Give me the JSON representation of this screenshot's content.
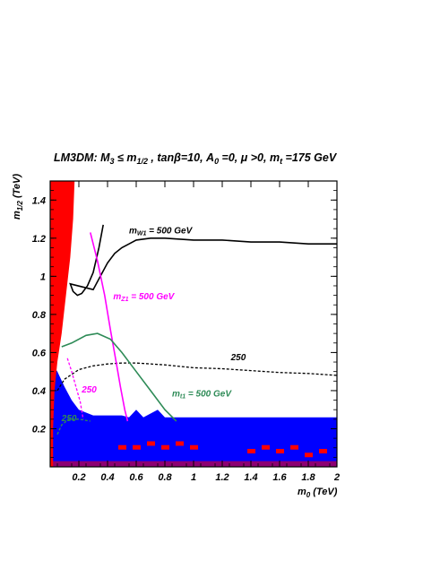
{
  "chart_data": {
    "type": "line",
    "title_main": "LM3DM:  M",
    "title_sub1": "3",
    "title_rel": " ≤ m",
    "title_sub2": "1/2",
    "title_rest": " , tanβ=10, A",
    "title_sub3": "0",
    "title_rest2": " =0, μ >0, m",
    "title_sub4": "t",
    "title_rest3": " =175 GeV",
    "xlabel_main": "m",
    "xlabel_sub": "0",
    "xlabel_unit": " (TeV)",
    "ylabel_main": "m",
    "ylabel_sub": "1/2",
    "ylabel_unit": " (TeV)",
    "xlim": [
      0,
      2
    ],
    "ylim": [
      0,
      1.5
    ],
    "x_ticks": [
      {
        "v": 0.2,
        "label": "0.2"
      },
      {
        "v": 0.4,
        "label": "0.4"
      },
      {
        "v": 0.6,
        "label": "0.6"
      },
      {
        "v": 0.8,
        "label": "0.8"
      },
      {
        "v": 1.0,
        "label": "1"
      },
      {
        "v": 1.2,
        "label": "1.2"
      },
      {
        "v": 1.4,
        "label": "1.4"
      },
      {
        "v": 1.6,
        "label": "1.6"
      },
      {
        "v": 1.8,
        "label": "1.8"
      },
      {
        "v": 2.0,
        "label": "2"
      }
    ],
    "y_ticks": [
      {
        "v": 0.2,
        "label": "0.2"
      },
      {
        "v": 0.4,
        "label": "0.4"
      },
      {
        "v": 0.6,
        "label": "0.6"
      },
      {
        "v": 0.8,
        "label": "0.8"
      },
      {
        "v": 1.0,
        "label": "1"
      },
      {
        "v": 1.2,
        "label": "1.2"
      },
      {
        "v": 1.4,
        "label": "1.4"
      }
    ],
    "colors": {
      "excluded_red": "#ff0000",
      "blue_region": "#0000ff",
      "mw1_curve": "#000000",
      "mz1_curve": "#ff00ff",
      "mt1_curve": "#2e8b57"
    },
    "series": [
      {
        "label_main": "m",
        "label_sub": "W1",
        "label_rest": " = 500 GeV",
        "color": "#000000",
        "style": "solid",
        "points": [
          [
            0.37,
            1.27
          ],
          [
            0.34,
            1.15
          ],
          [
            0.3,
            1.02
          ],
          [
            0.26,
            0.95
          ],
          [
            0.22,
            0.91
          ],
          [
            0.19,
            0.9
          ],
          [
            0.16,
            0.92
          ],
          [
            0.14,
            0.96
          ],
          [
            0.3,
            0.93
          ],
          [
            0.35,
            1.0
          ],
          [
            0.4,
            1.07
          ],
          [
            0.45,
            1.12
          ],
          [
            0.5,
            1.15
          ],
          [
            0.55,
            1.17
          ],
          [
            0.6,
            1.19
          ],
          [
            0.7,
            1.2
          ],
          [
            0.8,
            1.2
          ],
          [
            1.0,
            1.19
          ],
          [
            1.2,
            1.19
          ],
          [
            1.4,
            1.18
          ],
          [
            1.6,
            1.18
          ],
          [
            1.8,
            1.17
          ],
          [
            2.0,
            1.17
          ]
        ]
      },
      {
        "label_main": "m",
        "label_sub": "W1",
        "label_rest": " = 250",
        "color": "#000000",
        "style": "dashed",
        "points": [
          [
            0.05,
            0.4
          ],
          [
            0.1,
            0.46
          ],
          [
            0.2,
            0.51
          ],
          [
            0.3,
            0.53
          ],
          [
            0.4,
            0.54
          ],
          [
            0.5,
            0.545
          ],
          [
            0.6,
            0.545
          ],
          [
            0.8,
            0.535
          ],
          [
            1.0,
            0.52
          ],
          [
            1.2,
            0.515
          ],
          [
            1.4,
            0.505
          ],
          [
            1.6,
            0.495
          ],
          [
            1.8,
            0.49
          ],
          [
            2.0,
            0.48
          ]
        ]
      },
      {
        "label_main": "m",
        "label_sub": "Z1",
        "label_rest": " = 500 GeV",
        "color": "#ff00ff",
        "style": "solid",
        "points": [
          [
            0.28,
            1.23
          ],
          [
            0.33,
            1.08
          ],
          [
            0.38,
            0.9
          ],
          [
            0.42,
            0.72
          ],
          [
            0.46,
            0.55
          ],
          [
            0.49,
            0.42
          ],
          [
            0.52,
            0.3
          ],
          [
            0.54,
            0.24
          ]
        ]
      },
      {
        "label_main": "m",
        "label_sub": "Z1",
        "label_rest": " = 250",
        "color": "#ff00ff",
        "style": "dashed",
        "points": [
          [
            0.12,
            0.57
          ],
          [
            0.15,
            0.5
          ],
          [
            0.18,
            0.42
          ],
          [
            0.21,
            0.34
          ],
          [
            0.23,
            0.25
          ]
        ]
      },
      {
        "label_main": "m",
        "label_sub": "t1",
        "label_rest": " = 500 GeV",
        "color": "#2e8b57",
        "style": "solid",
        "points": [
          [
            0.08,
            0.63
          ],
          [
            0.15,
            0.65
          ],
          [
            0.25,
            0.69
          ],
          [
            0.33,
            0.7
          ],
          [
            0.42,
            0.67
          ],
          [
            0.5,
            0.6
          ],
          [
            0.6,
            0.5
          ],
          [
            0.7,
            0.4
          ],
          [
            0.8,
            0.3
          ],
          [
            0.88,
            0.24
          ]
        ]
      },
      {
        "label_main": "m",
        "label_sub": "t1",
        "label_rest": " = 250",
        "color": "#2e8b57",
        "style": "dashed",
        "points": [
          [
            0.05,
            0.17
          ],
          [
            0.08,
            0.22
          ],
          [
            0.13,
            0.25
          ],
          [
            0.2,
            0.25
          ],
          [
            0.28,
            0.24
          ]
        ]
      }
    ],
    "annotations": [
      {
        "main": "m",
        "sub": "W1",
        "rest": " = 500 GeV",
        "color": "#000000",
        "x": 0.55,
        "y": 1.225
      },
      {
        "main": "m",
        "sub": "Z1",
        "rest": " = 500 GeV",
        "color": "#ff00ff",
        "x": 0.44,
        "y": 0.88
      },
      {
        "main": "",
        "sub": "",
        "rest": "250",
        "color": "#000000",
        "x": 1.26,
        "y": 0.56
      },
      {
        "main": "m",
        "sub": "t1",
        "rest": " = 500 GeV",
        "color": "#2e8b57",
        "x": 0.85,
        "y": 0.37
      },
      {
        "main": "",
        "sub": "",
        "rest": "250",
        "color": "#ff00ff",
        "x": 0.22,
        "y": 0.39
      },
      {
        "main": "",
        "sub": "",
        "rest": "250",
        "color": "#2e8b57",
        "x": 0.08,
        "y": 0.24
      }
    ],
    "regions": {
      "red_wedge": [
        [
          0,
          0
        ],
        [
          0,
          1.5
        ],
        [
          0.17,
          1.5
        ],
        [
          0.16,
          1.3
        ],
        [
          0.14,
          1.1
        ],
        [
          0.11,
          0.9
        ],
        [
          0.08,
          0.7
        ],
        [
          0.05,
          0.55
        ],
        [
          0.03,
          0.4
        ],
        [
          0.02,
          0.2
        ],
        [
          0.02,
          0
        ]
      ],
      "blue_band_top": 0.26,
      "blue_bumps": [
        [
          0.0,
          0.55
        ],
        [
          0.05,
          0.5
        ],
        [
          0.1,
          0.42
        ],
        [
          0.15,
          0.35
        ],
        [
          0.2,
          0.3
        ],
        [
          0.3,
          0.27
        ],
        [
          0.4,
          0.27
        ],
        [
          0.5,
          0.27
        ],
        [
          0.55,
          0.26
        ],
        [
          0.6,
          0.3
        ],
        [
          0.65,
          0.26
        ],
        [
          0.7,
          0.28
        ],
        [
          0.75,
          0.3
        ],
        [
          0.8,
          0.26
        ],
        [
          2.0,
          0.26
        ]
      ],
      "red_patches": [
        [
          0.5,
          0.1
        ],
        [
          0.6,
          0.1
        ],
        [
          0.7,
          0.12
        ],
        [
          0.8,
          0.1
        ],
        [
          0.9,
          0.12
        ],
        [
          1.0,
          0.1
        ],
        [
          1.4,
          0.08
        ],
        [
          1.5,
          0.1
        ],
        [
          1.6,
          0.08
        ],
        [
          1.7,
          0.1
        ],
        [
          1.8,
          0.06
        ],
        [
          1.9,
          0.08
        ]
      ]
    }
  }
}
